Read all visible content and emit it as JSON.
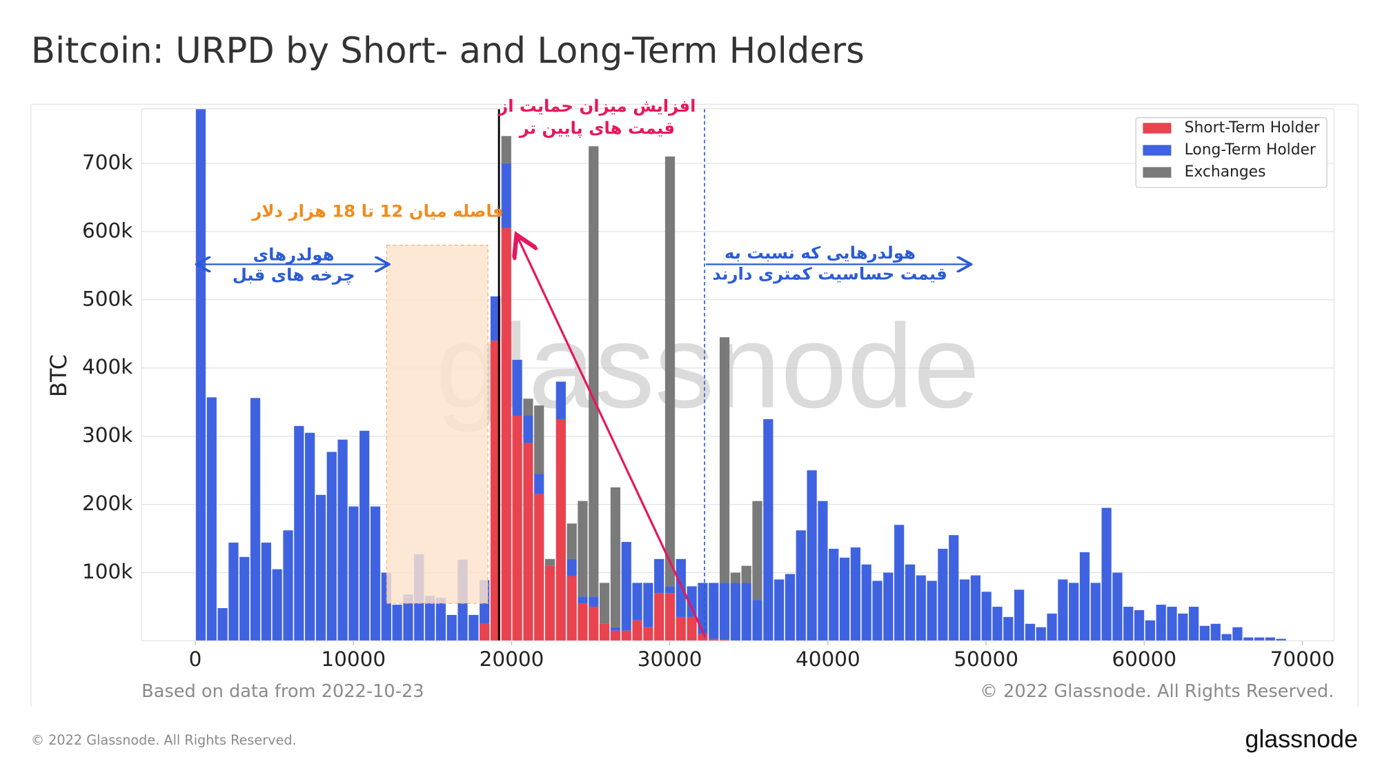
{
  "chart_data": {
    "type": "bar",
    "title": "Bitcoin: URPD by Short- and Long-Term Holders",
    "ylabel": "BTC",
    "source_note": "Based on data from 2022-10-23",
    "copyright": "© 2022 Glassnode. All Rights Reserved.",
    "watermark": "glassnode",
    "stacked": true,
    "grid": true,
    "legend": "upper right",
    "xlim": [
      -3400,
      72000
    ],
    "ylim": [
      0,
      780000
    ],
    "xticks": [
      0,
      10000,
      20000,
      30000,
      40000,
      50000,
      60000,
      70000
    ],
    "yticks": [
      {
        "value": 100000,
        "label": "100k"
      },
      {
        "value": 200000,
        "label": "200k"
      },
      {
        "value": 300000,
        "label": "300k"
      },
      {
        "value": 400000,
        "label": "400k"
      },
      {
        "value": 500000,
        "label": "500k"
      },
      {
        "value": 600000,
        "label": "600k"
      },
      {
        "value": 700000,
        "label": "700k"
      }
    ],
    "x": [
      345,
      1035,
      1725,
      2415,
      3105,
      3795,
      4485,
      5175,
      5865,
      6555,
      7245,
      7935,
      8625,
      9315,
      10005,
      10695,
      11385,
      12075,
      12765,
      13455,
      14145,
      14835,
      15525,
      16215,
      16905,
      17595,
      18285,
      18975,
      19665,
      20355,
      21045,
      21735,
      22425,
      23115,
      23805,
      24495,
      25185,
      25875,
      26565,
      27255,
      27945,
      28635,
      29325,
      30015,
      30705,
      31395,
      32085,
      32775,
      33465,
      34155,
      34845,
      35535,
      36225,
      36915,
      37605,
      38295,
      38985,
      39675,
      40365,
      41055,
      41745,
      42435,
      43125,
      43815,
      44505,
      45195,
      45885,
      46575,
      47265,
      47955,
      48645,
      49335,
      50025,
      50715,
      51405,
      52095,
      52785,
      53475,
      54165,
      54855,
      55545,
      56235,
      56925,
      57615,
      58305,
      58995,
      59685,
      60375,
      61065,
      61755,
      62445,
      63135,
      63825,
      64515,
      65205,
      65895,
      66585,
      67275,
      67965,
      68655
    ],
    "series": [
      {
        "name": "Short-Term Holder",
        "color": "#e8434f",
        "values": [
          0,
          0,
          0,
          0,
          0,
          0,
          0,
          0,
          0,
          0,
          0,
          0,
          0,
          0,
          0,
          0,
          0,
          0,
          0,
          0,
          0,
          0,
          0,
          0,
          0,
          0,
          25000,
          440000,
          605000,
          330000,
          290000,
          215000,
          110000,
          325000,
          95000,
          55000,
          50000,
          25000,
          15000,
          15000,
          30000,
          20000,
          70000,
          70000,
          35000,
          35000,
          10000,
          3000,
          2000,
          0,
          0,
          0,
          0,
          0,
          0,
          0,
          0,
          0,
          0,
          0,
          0,
          0,
          0,
          0,
          0,
          0,
          0,
          0,
          0,
          0,
          0,
          0,
          0,
          0,
          0,
          0,
          0,
          0,
          0,
          0,
          0,
          0,
          0,
          0,
          0,
          0,
          0,
          0,
          0,
          0,
          0,
          0,
          0,
          0,
          0,
          0,
          0,
          0,
          0,
          0
        ]
      },
      {
        "name": "Long-Term Holder",
        "color": "#3f63e0",
        "values": [
          780000,
          357000,
          48000,
          144000,
          123000,
          356000,
          144000,
          105000,
          162000,
          315000,
          305000,
          214000,
          277000,
          295000,
          197000,
          308000,
          197000,
          100000,
          53000,
          68000,
          127000,
          66000,
          63000,
          38000,
          119000,
          38000,
          64000,
          65000,
          95000,
          82000,
          40000,
          30000,
          0,
          55000,
          25000,
          10000,
          15000,
          0,
          5000,
          130000,
          55000,
          65000,
          50000,
          10000,
          85000,
          45000,
          75000,
          82000,
          83000,
          85000,
          85000,
          60000,
          325000,
          90000,
          98000,
          162000,
          250000,
          205000,
          135000,
          122000,
          137000,
          112000,
          88000,
          100000,
          170000,
          112000,
          96000,
          88000,
          135000,
          155000,
          90000,
          96000,
          72000,
          50000,
          35000,
          75000,
          25000,
          20000,
          40000,
          90000,
          85000,
          130000,
          85000,
          195000,
          100000,
          50000,
          45000,
          30000,
          53000,
          50000,
          40000,
          50000,
          22000,
          25000,
          10000,
          20000,
          5000,
          5000,
          5000,
          3000
        ]
      },
      {
        "name": "Exchanges",
        "color": "#7a7a7a",
        "values": [
          0,
          0,
          0,
          0,
          0,
          0,
          0,
          0,
          0,
          0,
          0,
          0,
          0,
          0,
          0,
          0,
          0,
          0,
          0,
          0,
          0,
          0,
          0,
          0,
          0,
          0,
          0,
          0,
          40000,
          0,
          25000,
          100000,
          10000,
          0,
          52000,
          140000,
          660000,
          60000,
          205000,
          0,
          0,
          0,
          0,
          630000,
          0,
          0,
          0,
          0,
          360000,
          15000,
          25000,
          145000,
          0,
          0,
          0,
          0,
          0,
          0,
          0,
          0,
          0,
          0,
          0,
          0,
          0,
          0,
          0,
          0,
          0,
          0,
          0,
          0,
          0,
          0,
          0,
          0,
          0,
          0,
          0,
          0,
          0,
          0,
          0,
          0,
          0,
          0,
          0,
          0,
          0,
          0,
          0,
          0,
          0,
          0,
          0,
          0,
          0,
          0,
          0,
          0
        ]
      }
    ],
    "shaded_region": {
      "x": [
        12100,
        18500
      ],
      "y": [
        55000,
        580000
      ]
    },
    "vlines": [
      {
        "x": 19200,
        "color": "#000000",
        "dashed": false
      },
      {
        "x": 32200,
        "color": "#2a5bd7",
        "dashed": true
      }
    ],
    "annotations": [
      {
        "lines": [
          "افزایش میزان حمایت از",
          "قیمت های پایین تر"
        ]
      },
      {
        "lines": [
          "فاصله میان 12 تا 18 هزار دلار"
        ]
      },
      {
        "lines": [
          "هولدرهای",
          "چرخه های قبل"
        ]
      },
      {
        "lines": [
          "هولدرهایی که نسبت به",
          "قیمت حساسیت کمتری دارند"
        ]
      }
    ]
  }
}
